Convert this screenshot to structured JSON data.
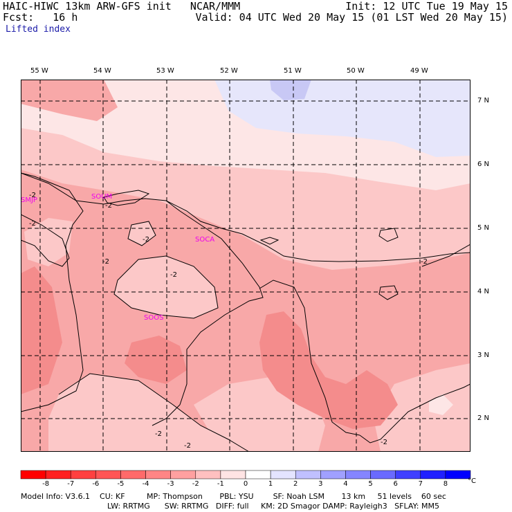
{
  "header": {
    "left_line1": "HAIC-HIWC 13km ARW-GFS init   NCAR/MMM",
    "left_line2": "Fcst:   16 h",
    "right_line1": "Init: 12 UTC Tue 19 May 15",
    "right_line2": "Valid: 04 UTC Wed 20 May 15 (01 LST Wed 20 May 15)",
    "field_name": "Lifted index"
  },
  "longitudes": [
    "55 W",
    "54 W",
    "53 W",
    "52 W",
    "51 W",
    "50 W",
    "49 W"
  ],
  "latitudes": [
    "7 N",
    "6 N",
    "5 N",
    "4 N",
    "3 N",
    "2 N"
  ],
  "stations": [
    "SMJP",
    "SOCA",
    "SOOS",
    "SOUM"
  ],
  "contour_labels": [
    "-2",
    "-2",
    "-2",
    "-2",
    "-2",
    "-2",
    "-2",
    "-2",
    "-2",
    "-2"
  ],
  "colorbar": {
    "tick_labels": [
      "-8",
      "-7",
      "-6",
      "-5",
      "-4",
      "-3",
      "-2",
      "-1",
      "0",
      "1",
      "2",
      "3",
      "4",
      "5",
      "6",
      "7",
      "8"
    ],
    "unit": "°C",
    "colors": [
      "#ff0000",
      "#ff2020",
      "#ff4040",
      "#ff5555",
      "#ff6a6a",
      "#ff8585",
      "#ffa0a0",
      "#ffc0c0",
      "#ffe4e4",
      "#ffffff",
      "#e4e4ff",
      "#c0c0ff",
      "#a0a0ff",
      "#8585ff",
      "#6a6aff",
      "#4040ff",
      "#2020ff",
      "#0000ff"
    ]
  },
  "footer": {
    "line1": "Model Info: V3.6.1    CU: KF         MP: Thompson       PBL: YSU        SF: Noah LSM       13 km     51 levels    60 sec",
    "line2": "LW: RRTMG      SW: RRTMG   DIFF: full     KM: 2D Smagor DAMP: Rayleigh3   SFLAY: MM5"
  },
  "field_colors": {
    "neg3": "#f48c8c",
    "neg2": "#f8a8a8",
    "neg1": "#fcc8c8",
    "zero": "#fde6e6",
    "pos1": "#e6e6fb",
    "pos2": "#c8c8f5",
    "coast": "#000000",
    "station": "#ee00ee"
  }
}
